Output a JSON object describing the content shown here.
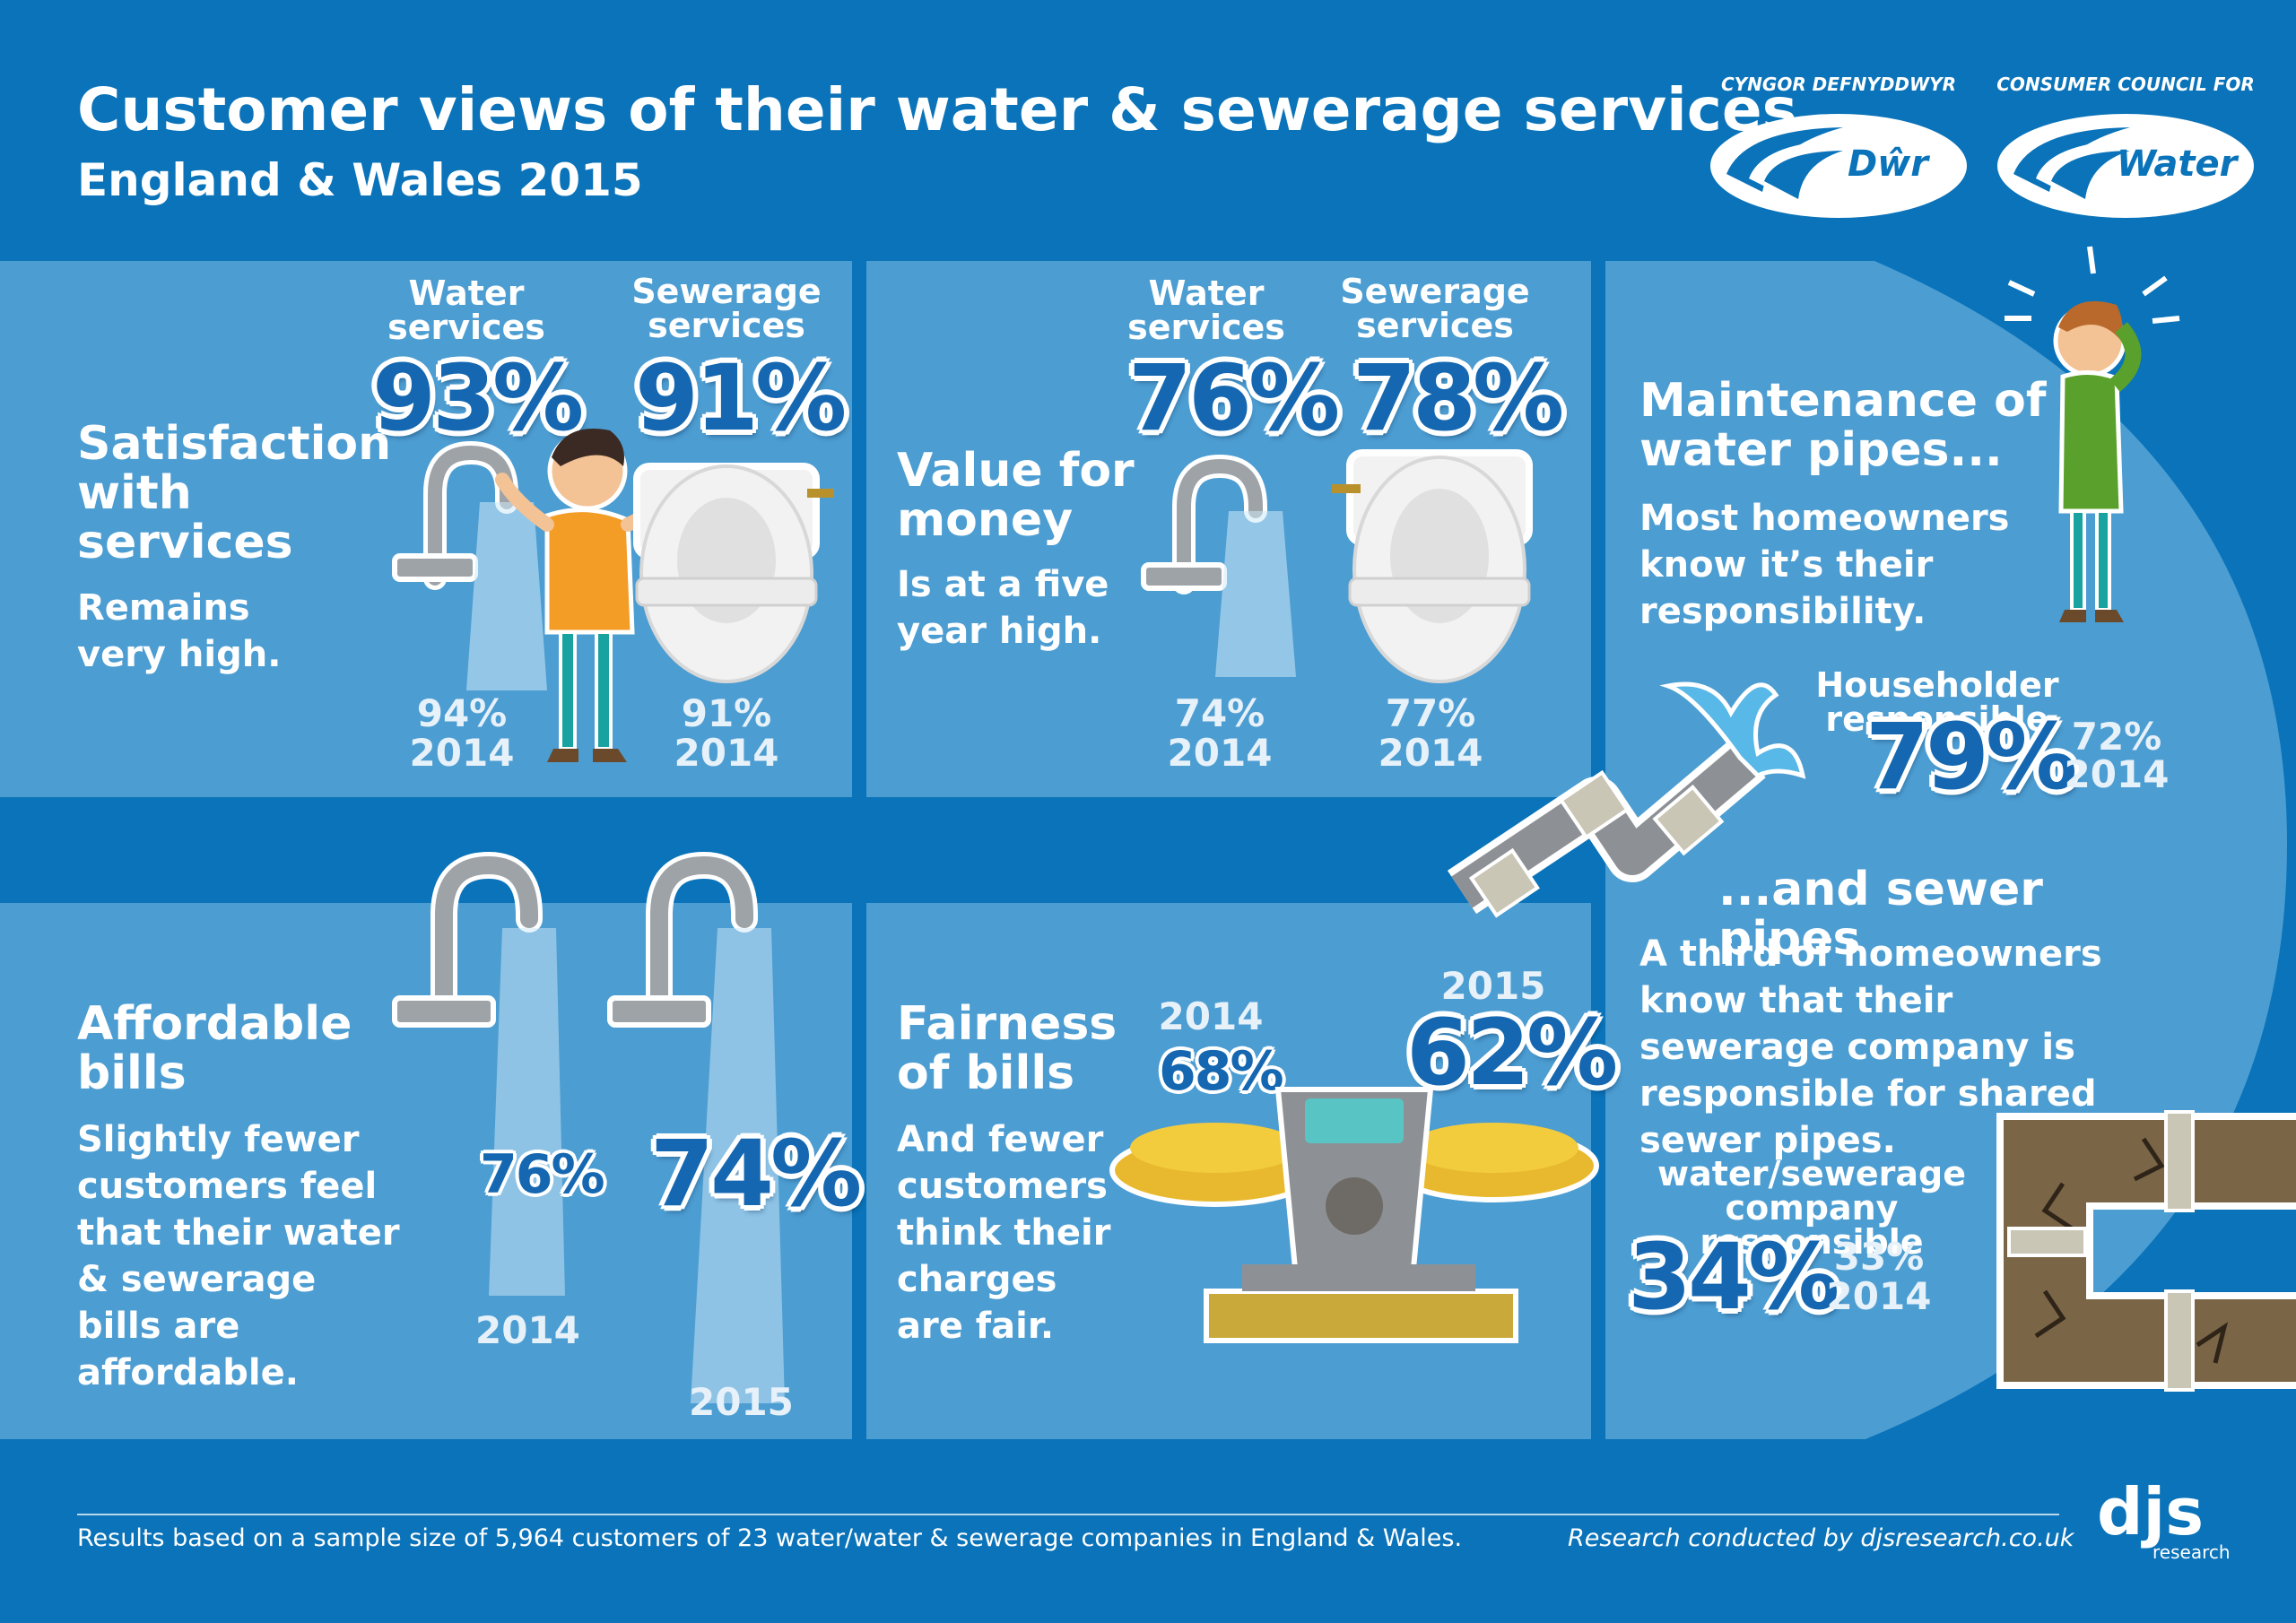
{
  "header": {
    "title": "Customer views of their water & sewerage services",
    "subtitle": "England & Wales 2015"
  },
  "logos": {
    "welsh_caption": "CYNGOR DEFNYDDWYR",
    "welsh_word": "Dŵr",
    "english_caption": "CONSUMER COUNCIL FOR",
    "english_word": "Water"
  },
  "satisfaction": {
    "heading": "Satisfaction with services",
    "body": "Remains very high.",
    "water_label": "Water services",
    "water_value": "93%",
    "water_prev": "94%",
    "water_prev_year": "2014",
    "sewer_label": "Sewerage services",
    "sewer_value": "91%",
    "sewer_prev": "91%",
    "sewer_prev_year": "2014"
  },
  "value": {
    "heading": "Value for money",
    "body": "Is at a five year high.",
    "water_label": "Water services",
    "water_value": "76%",
    "water_prev": "74%",
    "water_prev_year": "2014",
    "sewer_label": "Sewerage services",
    "sewer_value": "78%",
    "sewer_prev": "77%",
    "sewer_prev_year": "2014"
  },
  "maintenance": {
    "heading": "Maintenance of water pipes...",
    "body": "Most homeowners know it’s their responsibility.",
    "stat_label": "Householder responsible",
    "stat_value": "79%",
    "stat_prev": "72%",
    "stat_prev_year": "2014",
    "sewer_heading": "...and sewer pipes",
    "sewer_body": "A third of homeowners know that their sewerage company is responsible for shared sewer pipes.",
    "sewer_stat_label": "water/sewerage company responsible",
    "sewer_stat_value": "34%",
    "sewer_stat_prev": "33%",
    "sewer_stat_prev_year": "2014"
  },
  "affordable": {
    "heading": "Affordable bills",
    "body": "Slightly fewer customers feel that their water & sewerage bills are affordable.",
    "value_2014": "76%",
    "year_2014": "2014",
    "value_2015": "74%",
    "year_2015": "2015"
  },
  "fairness": {
    "heading": "Fairness of bills",
    "body": "And fewer customers think their charges are fair.",
    "year_2014": "2014",
    "value_2014": "68%",
    "year_2015": "2015",
    "value_2015": "62%"
  },
  "footer": {
    "note": "Results based on a sample size of 5,964 customers of 23 water/water & sewerage companies in England & Wales.",
    "credit": "Research conducted by djsresearch.co.uk",
    "brand": "djs",
    "brand_sub": "research"
  },
  "colors": {
    "background": "#0a73b9",
    "panel": "#4c9dd2",
    "number": "#1467b0"
  }
}
